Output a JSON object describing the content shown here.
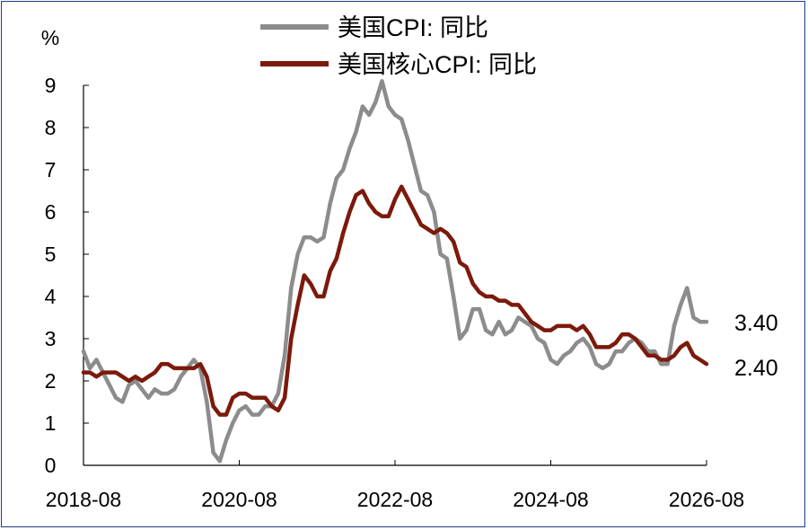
{
  "chart_data": {
    "type": "line",
    "title": "",
    "xlabel": "",
    "ylabel": "%",
    "ylim": [
      0,
      9
    ],
    "yticks": [
      "0",
      "1",
      "2",
      "3",
      "4",
      "5",
      "6",
      "7",
      "8",
      "9"
    ],
    "xticks": [
      "2018-08",
      "2020-08",
      "2022-08",
      "2024-08",
      "2026-08"
    ],
    "legend": "top-center",
    "series": [
      {
        "name": "美国CPI: 同比",
        "color": "#8c8c8c",
        "end_label": "3.40",
        "values": [
          2.7,
          2.3,
          2.5,
          2.2,
          1.9,
          1.6,
          1.5,
          1.9,
          2.0,
          1.8,
          1.6,
          1.8,
          1.7,
          1.7,
          1.8,
          2.1,
          2.3,
          2.5,
          2.3,
          1.5,
          0.3,
          0.1,
          0.6,
          1.0,
          1.3,
          1.4,
          1.2,
          1.2,
          1.4,
          1.4,
          1.7,
          2.6,
          4.2,
          5.0,
          5.4,
          5.4,
          5.3,
          5.4,
          6.2,
          6.8,
          7.0,
          7.5,
          7.9,
          8.5,
          8.3,
          8.6,
          9.1,
          8.5,
          8.3,
          8.2,
          7.7,
          7.1,
          6.5,
          6.4,
          6.0,
          5.0,
          4.9,
          4.0,
          3.0,
          3.2,
          3.7,
          3.7,
          3.2,
          3.1,
          3.4,
          3.1,
          3.2,
          3.5,
          3.4,
          3.3,
          3.0,
          2.9,
          2.5,
          2.4,
          2.6,
          2.7,
          2.9,
          3.0,
          2.8,
          2.4,
          2.3,
          2.4,
          2.7,
          2.7,
          2.9,
          3.0,
          2.9,
          2.7,
          2.7,
          2.4,
          2.4,
          3.3,
          3.8,
          4.2,
          3.5,
          3.4,
          3.4
        ]
      },
      {
        "name": "美国核心CPI: 同比",
        "color": "#7b1a0c",
        "end_label": "2.40",
        "values": [
          2.2,
          2.2,
          2.1,
          2.2,
          2.2,
          2.2,
          2.1,
          2.0,
          2.1,
          2.0,
          2.1,
          2.2,
          2.4,
          2.4,
          2.3,
          2.3,
          2.3,
          2.3,
          2.4,
          2.1,
          1.4,
          1.2,
          1.2,
          1.6,
          1.7,
          1.7,
          1.6,
          1.6,
          1.6,
          1.4,
          1.3,
          1.6,
          3.0,
          3.8,
          4.5,
          4.3,
          4.0,
          4.0,
          4.6,
          4.9,
          5.5,
          6.0,
          6.4,
          6.5,
          6.2,
          6.0,
          5.9,
          5.9,
          6.3,
          6.6,
          6.3,
          6.0,
          5.7,
          5.6,
          5.5,
          5.6,
          5.5,
          5.3,
          4.8,
          4.7,
          4.3,
          4.1,
          4.0,
          4.0,
          3.9,
          3.9,
          3.8,
          3.8,
          3.6,
          3.4,
          3.3,
          3.2,
          3.2,
          3.3,
          3.3,
          3.3,
          3.2,
          3.3,
          3.1,
          2.8,
          2.8,
          2.8,
          2.9,
          3.1,
          3.1,
          3.0,
          2.8,
          2.6,
          2.6,
          2.5,
          2.5,
          2.6,
          2.8,
          2.9,
          2.6,
          2.5,
          2.4
        ]
      }
    ]
  }
}
